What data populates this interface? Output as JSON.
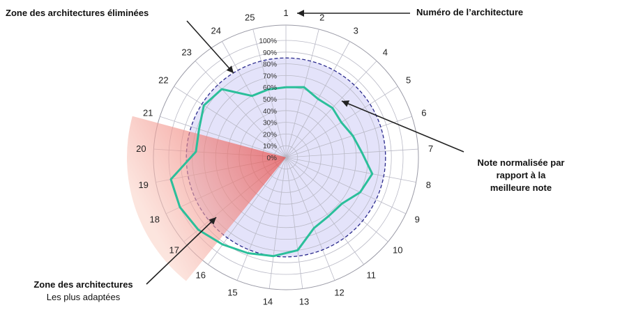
{
  "annotations": {
    "eliminated_zone": "Zone des architectures éliminées",
    "architecture_number": "Numéro de l’architecture",
    "normalized_note": [
      "Note normalisée par",
      "rapport à la",
      "meilleure note"
    ],
    "best_zone": [
      "Zone des architectures",
      "Les plus adaptées"
    ]
  },
  "chart_data": {
    "type": "radar",
    "categories": [
      "1",
      "2",
      "3",
      "4",
      "5",
      "6",
      "7",
      "8",
      "9",
      "10",
      "11",
      "12",
      "13",
      "14",
      "15",
      "16",
      "17",
      "18",
      "19",
      "20",
      "21",
      "22",
      "23",
      "24",
      "25"
    ],
    "radial_tick_labels": [
      "0%",
      "10%",
      "20%",
      "30%",
      "40%",
      "50%",
      "60%",
      "70%",
      "80%",
      "90%",
      "100%"
    ],
    "rlim": [
      0,
      100
    ],
    "threshold_circle": 85,
    "series": [
      {
        "values": [
          60,
          62,
          57,
          58,
          56,
          60,
          65,
          75,
          70,
          62,
          62,
          65,
          80,
          85,
          88,
          92,
          97,
          100,
          100,
          77,
          78,
          83,
          80,
          60,
          60
        ]
      }
    ],
    "colors": {
      "series_line": "#2bbf9a",
      "area_fill": "#e4e3fa",
      "threshold": "#2a2a8c",
      "grid": "#b9b9c6",
      "highlight_wedge": "#ee6f6a"
    },
    "grid": true
  }
}
